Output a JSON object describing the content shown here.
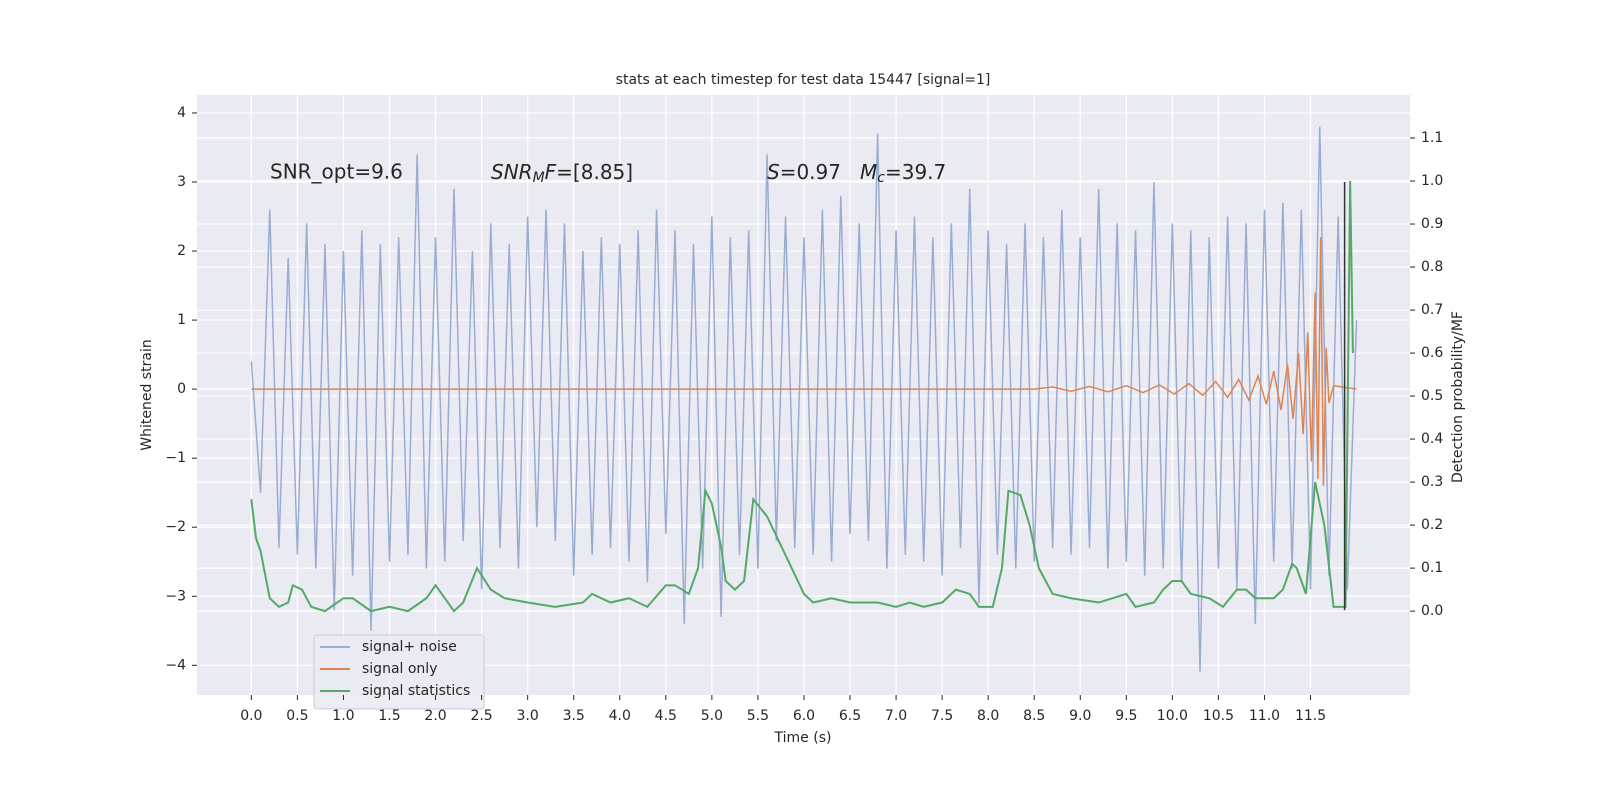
{
  "chart_data": {
    "type": "line",
    "title": "stats at each timestep for test data 15447 [signal=1]",
    "xlabel": "Time (s)",
    "ylabel": "Whitened strain",
    "y2label": "Detection probability/MF",
    "xlim": [
      -0.59,
      12.58
    ],
    "ylim": [
      -4.43,
      4.26
    ],
    "y2lim": [
      -0.195,
      1.2
    ],
    "xticks": [
      {
        "value": 0,
        "label": "0.0"
      },
      0.5,
      {
        "value": 1,
        "label": "1.0"
      },
      1.5,
      {
        "value": 2,
        "label": "2.0"
      },
      2.5,
      {
        "value": 3,
        "label": "3.0"
      },
      3.5,
      {
        "value": 4,
        "label": "4.0"
      },
      4.5,
      {
        "value": 5,
        "label": "5.0"
      },
      5.5,
      {
        "value": 6,
        "label": "6.0"
      },
      6.5,
      {
        "value": 7,
        "label": "7.0"
      },
      7.5,
      {
        "value": 8,
        "label": "8.0"
      },
      8.5,
      {
        "value": 9,
        "label": "9.0"
      },
      9.5,
      {
        "value": 10,
        "label": "10.0"
      },
      10.5,
      {
        "value": 11,
        "label": "11.0"
      },
      11.5
    ],
    "yticks": [
      {
        "value": -4,
        "label": "−4"
      },
      {
        "value": -3,
        "label": "−3"
      },
      {
        "value": -2,
        "label": "−2"
      },
      {
        "value": -1,
        "label": "−1"
      },
      0,
      1,
      2,
      3,
      4
    ],
    "y2ticks": [
      {
        "value": 0,
        "label": "0.0"
      },
      0.1,
      0.2,
      0.3,
      0.4,
      0.5,
      0.6,
      0.7,
      0.8,
      0.9,
      {
        "value": 1,
        "label": "1.0"
      },
      1.1
    ],
    "grid": true,
    "legend": "lower left",
    "annotations": {
      "snr_opt": "SNR_opt=9.6",
      "snr_mf": [
        "SNR",
        "M",
        "F",
        "=[8.85]"
      ],
      "s": [
        "S",
        "=0.97"
      ],
      "mc": [
        "M",
        "c",
        "=39.7"
      ]
    },
    "vline": {
      "x": 11.87,
      "y": [
        -3.2,
        3.0
      ],
      "color": "#333333"
    },
    "series": [
      {
        "name": "signal+ noise",
        "color": "#9aacd2",
        "x": [
          0,
          0.1,
          0.2,
          0.3,
          0.4,
          0.5,
          0.6,
          0.7,
          0.8,
          0.9,
          1,
          1.1,
          1.2,
          1.3,
          1.4,
          1.5,
          1.6,
          1.7,
          1.8,
          1.9,
          2,
          2.1,
          2.2,
          2.3,
          2.4,
          2.5,
          2.6,
          2.7,
          2.8,
          2.9,
          3,
          3.1,
          3.2,
          3.3,
          3.4,
          3.5,
          3.6,
          3.7,
          3.8,
          3.9,
          4,
          4.1,
          4.2,
          4.3,
          4.4,
          4.5,
          4.6,
          4.7,
          4.8,
          4.9,
          5,
          5.1,
          5.2,
          5.3,
          5.4,
          5.5,
          5.6,
          5.7,
          5.8,
          5.9,
          6,
          6.1,
          6.2,
          6.3,
          6.4,
          6.5,
          6.6,
          6.7,
          6.8,
          6.9,
          7,
          7.1,
          7.2,
          7.3,
          7.4,
          7.5,
          7.6,
          7.7,
          7.8,
          7.9,
          8,
          8.1,
          8.2,
          8.3,
          8.4,
          8.5,
          8.6,
          8.7,
          8.8,
          8.9,
          9,
          9.1,
          9.2,
          9.3,
          9.4,
          9.5,
          9.6,
          9.7,
          9.8,
          9.9,
          10,
          10.1,
          10.2,
          10.3,
          10.4,
          10.5,
          10.6,
          10.7,
          10.8,
          10.9,
          11,
          11.1,
          11.2,
          11.3,
          11.4,
          11.5,
          11.6,
          11.7,
          11.8,
          11.9,
          12
        ],
        "values": [
          0.4,
          -1.5,
          2.6,
          -2.3,
          1.9,
          -2.4,
          2.4,
          -2.6,
          2.1,
          -3.2,
          2.0,
          -2.7,
          2.3,
          -3.5,
          2.1,
          -2.5,
          2.2,
          -2.4,
          3.4,
          -2.6,
          2.2,
          -2.5,
          2.9,
          -2.2,
          2.0,
          -2.9,
          2.4,
          -2.3,
          2.1,
          -2.6,
          2.5,
          -2.0,
          2.6,
          -2.2,
          2.4,
          -2.7,
          2.0,
          -2.4,
          2.2,
          -2.3,
          2.1,
          -2.5,
          2.3,
          -2.8,
          2.6,
          -2.1,
          2.3,
          -3.4,
          2.1,
          -2.6,
          2.5,
          -3.3,
          2.2,
          -2.4,
          2.3,
          -2.6,
          3.4,
          -2.2,
          2.5,
          -2.3,
          2.2,
          -2.4,
          2.6,
          -2.5,
          2.8,
          -2.1,
          2.4,
          -2.2,
          3.7,
          -2.6,
          2.3,
          -2.4,
          2.5,
          -2.5,
          2.2,
          -2.7,
          2.4,
          -2.3,
          2.9,
          -3.1,
          2.3,
          -2.4,
          2.1,
          -2.6,
          2.4,
          -2.5,
          2.2,
          -2.3,
          2.6,
          -2.4,
          2.2,
          -2.3,
          2.9,
          -2.6,
          2.4,
          -2.5,
          2.3,
          -2.7,
          3.0,
          -2.6,
          2.4,
          -2.8,
          2.3,
          -4.1,
          2.2,
          -2.6,
          2.5,
          -2.9,
          2.4,
          -3.4,
          2.6,
          -2.5,
          2.7,
          -2.6,
          2.6,
          -2.9,
          3.8,
          -2.7,
          2.5,
          -2.9,
          1.0
        ]
      },
      {
        "name": "signal only",
        "color": "#dd8452",
        "x": [
          0,
          8.5,
          8.7,
          8.9,
          9.1,
          9.3,
          9.5,
          9.68,
          9.86,
          10.02,
          10.18,
          10.33,
          10.47,
          10.6,
          10.72,
          10.83,
          10.93,
          11.02,
          11.1,
          11.18,
          11.25,
          11.31,
          11.37,
          11.42,
          11.47,
          11.51,
          11.55,
          11.58,
          11.61,
          11.64,
          11.67,
          11.7,
          11.75,
          12
        ],
        "values": [
          0,
          0,
          0.03,
          -0.03,
          0.04,
          -0.04,
          0.05,
          -0.05,
          0.06,
          -0.07,
          0.08,
          -0.09,
          0.11,
          -0.12,
          0.14,
          -0.16,
          0.19,
          -0.22,
          0.26,
          -0.3,
          0.36,
          -0.43,
          0.52,
          -0.65,
          0.82,
          -1.05,
          1.4,
          -1.3,
          2.2,
          -1.4,
          0.6,
          -0.2,
          0.05,
          0
        ]
      },
      {
        "name": "signal statistics",
        "color": "#55a868",
        "axis": "y2",
        "x": [
          0,
          0.05,
          0.1,
          0.2,
          0.3,
          0.4,
          0.45,
          0.55,
          0.65,
          0.8,
          1.0,
          1.1,
          1.3,
          1.5,
          1.7,
          1.9,
          2.0,
          2.1,
          2.2,
          2.3,
          2.45,
          2.6,
          2.75,
          3.0,
          3.3,
          3.6,
          3.7,
          3.9,
          4.1,
          4.3,
          4.5,
          4.6,
          4.75,
          4.85,
          4.93,
          5.0,
          5.1,
          5.15,
          5.25,
          5.35,
          5.45,
          5.6,
          5.8,
          6.0,
          6.1,
          6.3,
          6.5,
          6.8,
          7.0,
          7.15,
          7.3,
          7.5,
          7.65,
          7.8,
          7.9,
          8.05,
          8.15,
          8.22,
          8.35,
          8.45,
          8.55,
          8.7,
          8.9,
          9.2,
          9.5,
          9.6,
          9.8,
          9.9,
          10.0,
          10.1,
          10.2,
          10.4,
          10.55,
          10.7,
          10.8,
          10.9,
          11.1,
          11.2,
          11.3,
          11.35,
          11.45,
          11.55,
          11.65,
          11.75,
          11.88,
          11.93,
          11.96
        ],
        "values": [
          0.26,
          0.17,
          0.14,
          0.03,
          0.01,
          0.02,
          0.06,
          0.05,
          0.01,
          0.0,
          0.03,
          0.03,
          0.0,
          0.01,
          0.0,
          0.03,
          0.06,
          0.03,
          0.0,
          0.02,
          0.1,
          0.05,
          0.03,
          0.02,
          0.01,
          0.02,
          0.04,
          0.02,
          0.03,
          0.01,
          0.06,
          0.06,
          0.04,
          0.1,
          0.28,
          0.25,
          0.15,
          0.07,
          0.05,
          0.07,
          0.26,
          0.22,
          0.13,
          0.04,
          0.02,
          0.03,
          0.02,
          0.02,
          0.01,
          0.02,
          0.01,
          0.02,
          0.05,
          0.04,
          0.01,
          0.01,
          0.1,
          0.28,
          0.27,
          0.2,
          0.1,
          0.04,
          0.03,
          0.02,
          0.04,
          0.01,
          0.02,
          0.05,
          0.07,
          0.07,
          0.04,
          0.03,
          0.01,
          0.05,
          0.05,
          0.03,
          0.03,
          0.05,
          0.11,
          0.1,
          0.04,
          0.3,
          0.2,
          0.01,
          0.01,
          1.0,
          0.6
        ]
      }
    ]
  }
}
